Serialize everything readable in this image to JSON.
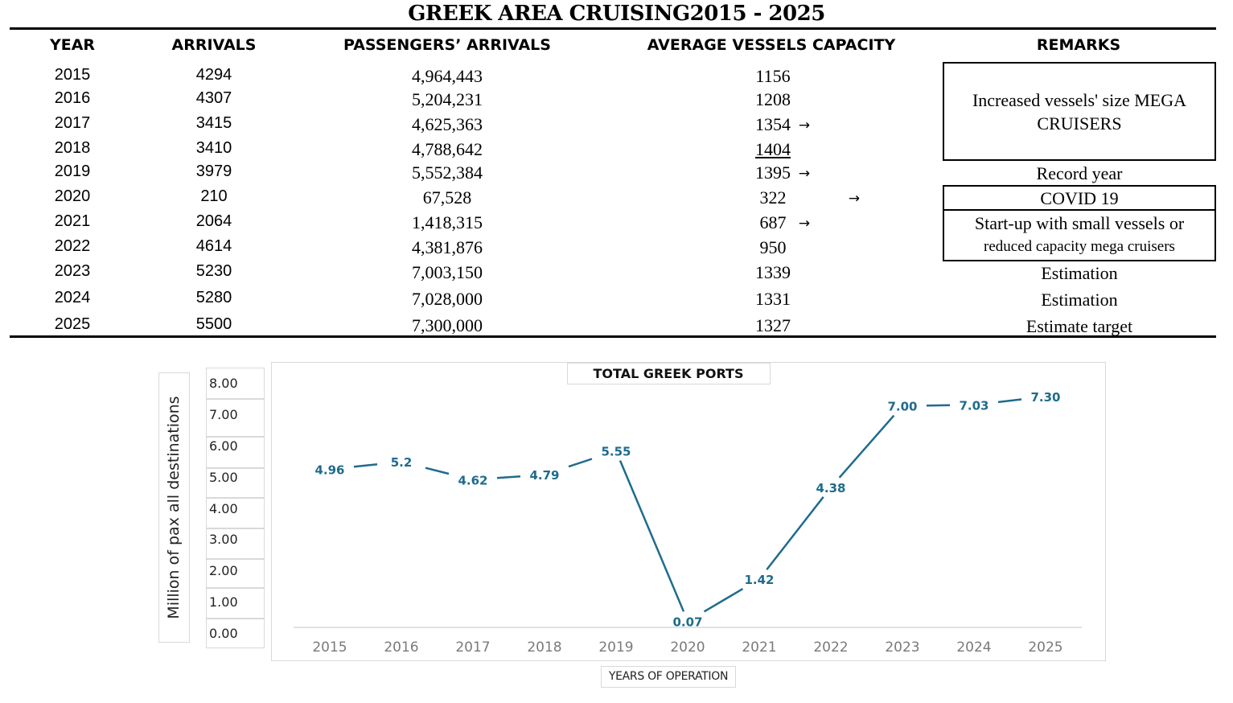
{
  "table": {
    "title": "GREEK AREA CRUISING2015 - 2025",
    "headers": {
      "year": "YEAR",
      "arrivals": "ARRIVALS",
      "passengers": "PASSENGERS’ ARRIVALS",
      "capacity": "AVERAGE VESSELS CAPACITY",
      "remarks": "REMARKS"
    },
    "rows": [
      {
        "year": "2015",
        "arrivals": "4294",
        "passengers": "4,964,443",
        "capacity": "1156",
        "arrow": ""
      },
      {
        "year": "2016",
        "arrivals": "4307",
        "passengers": "5,204,231",
        "capacity": "1208",
        "arrow": ""
      },
      {
        "year": "2017",
        "arrivals": "3415",
        "passengers": "4,625,363",
        "capacity": "1354",
        "arrow": "→"
      },
      {
        "year": "2018",
        "arrivals": "3410",
        "passengers": "4,788,642",
        "capacity": "1404",
        "arrow": ""
      },
      {
        "year": "2019",
        "arrivals": "3979",
        "passengers": "5,552,384",
        "capacity": "1395",
        "arrow": "→"
      },
      {
        "year": "2020",
        "arrivals": "210",
        "passengers": "67,528",
        "capacity": "322",
        "arrow": "→"
      },
      {
        "year": "2021",
        "arrivals": "2064",
        "passengers": "1,418,315",
        "capacity": "687",
        "arrow": "→"
      },
      {
        "year": "2022",
        "arrivals": "4614",
        "passengers": "4,381,876",
        "capacity": "950",
        "arrow": ""
      },
      {
        "year": "2023",
        "arrivals": "5230",
        "passengers": "7,003,150",
        "capacity": "1339",
        "arrow": ""
      },
      {
        "year": "2024",
        "arrivals": "5280",
        "passengers": "7,028,000",
        "capacity": "1331",
        "arrow": ""
      },
      {
        "year": "2025",
        "arrivals": "5500",
        "passengers": "7,300,000",
        "capacity": "1327",
        "arrow": ""
      }
    ],
    "remarks": {
      "mega_line1": "Increased vessels' size MEGA",
      "mega_line2": "CRUISERS",
      "record": "Record year",
      "covid": "COVID 19",
      "startup_line1": "Start-up with small vessels or",
      "startup_line2": "reduced capacity mega cruisers",
      "estimation_2023": "Estimation",
      "estimation_2024": "Estimation",
      "target_2025": "Estimate target"
    }
  },
  "chart_data": {
    "type": "line",
    "title": "TOTAL GREEK PORTS",
    "xlabel": "YEARS OF OPERATION",
    "ylabel": "Million of pax all destinations",
    "categories": [
      "2015",
      "2016",
      "2017",
      "2018",
      "2019",
      "2020",
      "2021",
      "2022",
      "2023",
      "2024",
      "2025"
    ],
    "series": [
      {
        "values": [
          4.96,
          5.2,
          4.62,
          4.79,
          5.55,
          0.07,
          1.42,
          4.38,
          7.0,
          7.03,
          7.3
        ],
        "labels": [
          "4.96",
          "5.2",
          "4.62",
          "4.79",
          "5.55",
          "0.07",
          "1.42",
          "4.38",
          "7.00",
          "7.03",
          "7.30"
        ]
      }
    ],
    "yticks": [
      "0.00",
      "1.00",
      "2.00",
      "3.00",
      "4.00",
      "5.00",
      "6.00",
      "7.00",
      "8.00"
    ],
    "ylim": [
      0,
      8
    ],
    "line_color": "#1f6b8e",
    "grid": false,
    "legend": "none"
  }
}
